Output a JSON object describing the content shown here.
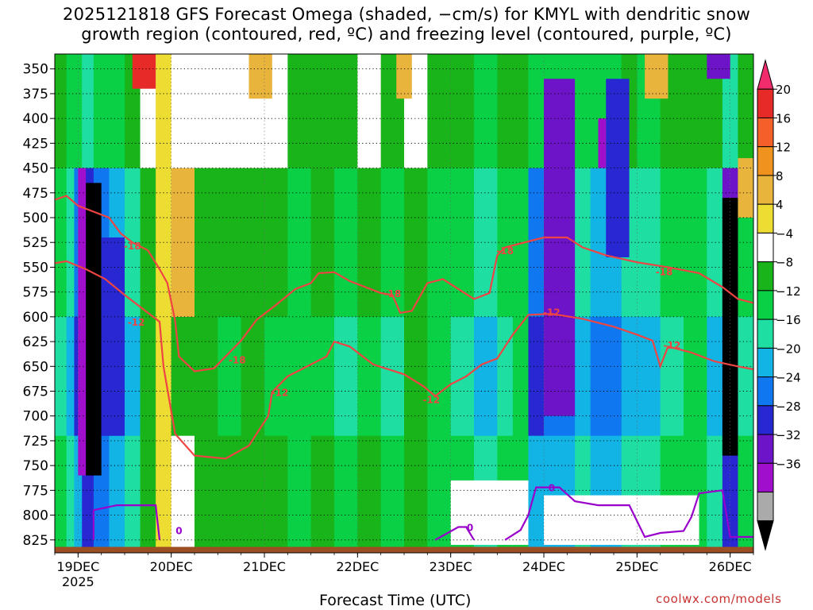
{
  "title": {
    "line1": "2025121818 GFS Forecast Omega (shaded, −cm/s) for KMYL with dendritic snow",
    "line2": "growth region (contoured, red, ºC) and freezing level (contoured, purple, ºC)"
  },
  "credit": "coolwx.com/models",
  "chart_data": {
    "type": "heatmap",
    "xlabel": "Forecast Time (UTC)",
    "ylabel": "",
    "y_axis": {
      "ticks": [
        350,
        375,
        400,
        425,
        450,
        475,
        500,
        525,
        550,
        575,
        600,
        625,
        650,
        675,
        700,
        725,
        750,
        775,
        800,
        825
      ],
      "range": [
        335,
        838
      ],
      "inverted": true,
      "grid": "dotted"
    },
    "x_axis": {
      "ticks": [
        {
          "label": "19DEC",
          "sublabel": "2025",
          "hours": 6
        },
        {
          "label": "20DEC",
          "hours": 30
        },
        {
          "label": "21DEC",
          "hours": 54
        },
        {
          "label": "22DEC",
          "hours": 78
        },
        {
          "label": "23DEC",
          "hours": 102
        },
        {
          "label": "24DEC",
          "hours": 126
        },
        {
          "label": "25DEC",
          "hours": 150
        },
        {
          "label": "26DEC",
          "hours": 174
        }
      ],
      "range_hours": [
        0,
        180
      ],
      "grid": "dotted"
    },
    "colorbar": {
      "labels": [
        "20",
        "16",
        "12",
        "8",
        "4",
        "−4",
        "−8",
        "−12",
        "−16",
        "−20",
        "−24",
        "−28",
        "−32",
        "−36"
      ],
      "bins": [
        {
          "color": "#f02c6c"
        },
        {
          "color": "#e62a28"
        },
        {
          "color": "#f55f2a"
        },
        {
          "color": "#f0921e"
        },
        {
          "color": "#e8b43c"
        },
        {
          "color": "#eddc32"
        },
        {
          "color": "#ffffff"
        },
        {
          "color": "#19b419"
        },
        {
          "color": "#0ad046"
        },
        {
          "color": "#1fdea2"
        },
        {
          "color": "#12b4e6"
        },
        {
          "color": "#0f78f0"
        },
        {
          "color": "#2828d2"
        },
        {
          "color": "#6e14c8"
        },
        {
          "color": "#a00fcc"
        },
        {
          "color": "#aaaaaa"
        },
        {
          "color": "#000000"
        }
      ]
    },
    "omega_bands": [
      {
        "x0": 0,
        "x1": 3,
        "v": -14
      },
      {
        "x0": 3,
        "x1": 5,
        "v": -18
      },
      {
        "x0": 5,
        "x1": 7,
        "v": -24
      },
      {
        "x0": 7,
        "x1": 10,
        "v": -30
      },
      {
        "x0": 10,
        "x1": 14,
        "v": -26
      },
      {
        "x0": 14,
        "x1": 18,
        "v": -22
      },
      {
        "x0": 18,
        "x1": 22,
        "v": -16
      },
      {
        "x0": 22,
        "x1": 26,
        "v": -6
      },
      {
        "x0": 26,
        "x1": 30,
        "v": 2
      },
      {
        "x0": 30,
        "x1": 36,
        "v": -4
      },
      {
        "x0": 36,
        "x1": 42,
        "v": -6
      },
      {
        "x0": 42,
        "x1": 48,
        "v": -8
      },
      {
        "x0": 48,
        "x1": 54,
        "v": -5
      },
      {
        "x0": 54,
        "x1": 60,
        "v": -8
      },
      {
        "x0": 60,
        "x1": 66,
        "v": -10
      },
      {
        "x0": 66,
        "x1": 72,
        "v": -9
      },
      {
        "x0": 72,
        "x1": 78,
        "v": -12
      },
      {
        "x0": 78,
        "x1": 84,
        "v": -8
      },
      {
        "x0": 84,
        "x1": 90,
        "v": -14
      },
      {
        "x0": 90,
        "x1": 96,
        "v": -6
      },
      {
        "x0": 96,
        "x1": 102,
        "v": -10
      },
      {
        "x0": 102,
        "x1": 108,
        "v": -14
      },
      {
        "x0": 108,
        "x1": 114,
        "v": -18
      },
      {
        "x0": 114,
        "x1": 118,
        "v": -12
      },
      {
        "x0": 118,
        "x1": 122,
        "v": -10
      },
      {
        "x0": 122,
        "x1": 126,
        "v": -24
      },
      {
        "x0": 126,
        "x1": 130,
        "v": -20
      },
      {
        "x0": 130,
        "x1": 134,
        "v": -22
      },
      {
        "x0": 134,
        "x1": 138,
        "v": -18
      },
      {
        "x0": 138,
        "x1": 142,
        "v": -22
      },
      {
        "x0": 142,
        "x1": 146,
        "v": -20
      },
      {
        "x0": 146,
        "x1": 150,
        "v": -16
      },
      {
        "x0": 150,
        "x1": 156,
        "v": -18
      },
      {
        "x0": 156,
        "x1": 162,
        "v": -14
      },
      {
        "x0": 162,
        "x1": 168,
        "v": -10
      },
      {
        "x0": 168,
        "x1": 172,
        "v": -16
      },
      {
        "x0": 172,
        "x1": 176,
        "v": -34
      },
      {
        "x0": 176,
        "x1": 180,
        "v": -12
      }
    ],
    "omega_cells": [
      {
        "x0": 8,
        "x1": 12,
        "p0": 465,
        "p1": 760,
        "v": -40
      },
      {
        "x0": 6,
        "x1": 8,
        "p0": 450,
        "p1": 760,
        "v": -34
      },
      {
        "x0": 12,
        "x1": 18,
        "p0": 520,
        "p1": 720,
        "v": -26
      },
      {
        "x0": 20,
        "x1": 26,
        "p0": 335,
        "p1": 370,
        "v": 18
      },
      {
        "x0": 30,
        "x1": 36,
        "p0": 450,
        "p1": 600,
        "v": 6
      },
      {
        "x0": 50,
        "x1": 56,
        "p0": 335,
        "p1": 380,
        "v": 6
      },
      {
        "x0": 88,
        "x1": 92,
        "p0": 335,
        "p1": 380,
        "v": 6
      },
      {
        "x0": 126,
        "x1": 134,
        "p0": 360,
        "p1": 700,
        "v": -30
      },
      {
        "x0": 142,
        "x1": 148,
        "p0": 360,
        "p1": 540,
        "v": -26
      },
      {
        "x0": 172,
        "x1": 176,
        "p0": 480,
        "p1": 740,
        "v": -40
      },
      {
        "x0": 168,
        "x1": 174,
        "p0": 335,
        "p1": 360,
        "v": -28
      },
      {
        "x0": 152,
        "x1": 158,
        "p0": 335,
        "p1": 380,
        "v": 6
      },
      {
        "x0": 176,
        "x1": 180,
        "p0": 440,
        "p1": 500,
        "v": 6
      },
      {
        "x0": 140,
        "x1": 142,
        "p0": 400,
        "p1": 450,
        "v": -34
      }
    ],
    "lowlevel_clear": [
      {
        "x0": 102,
        "x1": 122,
        "p0": 765,
        "p1": 830
      },
      {
        "x0": 126,
        "x1": 166,
        "p0": 780,
        "p1": 830
      }
    ],
    "dgz_contours": [
      {
        "value": -18,
        "labels": [
          {
            "text": "-18",
            "t": 20,
            "p": 528
          },
          {
            "t": 47,
            "p": 643,
            "text": "-18"
          },
          {
            "t": 87,
            "p": 576,
            "text": "-18"
          },
          {
            "t": 116,
            "p": 533,
            "text": "-18"
          },
          {
            "t": 157,
            "p": 554,
            "text": "-18"
          }
        ],
        "points": [
          [
            0,
            482
          ],
          [
            3,
            478
          ],
          [
            6,
            488
          ],
          [
            10,
            494
          ],
          [
            14,
            500
          ],
          [
            17,
            516
          ],
          [
            20,
            525
          ],
          [
            24,
            533
          ],
          [
            27,
            552
          ],
          [
            29,
            566
          ],
          [
            31,
            604
          ],
          [
            32,
            640
          ],
          [
            36,
            655
          ],
          [
            41,
            652
          ],
          [
            44,
            640
          ],
          [
            48,
            624
          ],
          [
            52,
            603
          ],
          [
            57,
            588
          ],
          [
            62,
            572
          ],
          [
            66,
            566
          ],
          [
            68,
            556
          ],
          [
            72,
            555
          ],
          [
            76,
            564
          ],
          [
            80,
            570
          ],
          [
            84,
            576
          ],
          [
            87,
            578
          ],
          [
            89,
            596
          ],
          [
            92,
            594
          ],
          [
            96,
            566
          ],
          [
            100,
            562
          ],
          [
            104,
            572
          ],
          [
            108,
            582
          ],
          [
            112,
            576
          ],
          [
            114,
            538
          ],
          [
            116,
            530
          ],
          [
            120,
            526
          ],
          [
            126,
            520
          ],
          [
            132,
            520
          ],
          [
            136,
            530
          ],
          [
            142,
            538
          ],
          [
            150,
            545
          ],
          [
            158,
            550
          ],
          [
            166,
            556
          ],
          [
            172,
            570
          ],
          [
            176,
            582
          ],
          [
            180,
            586
          ]
        ]
      },
      {
        "value": -12,
        "labels": [
          {
            "text": "-12",
            "t": 21,
            "p": 605
          },
          {
            "t": 58,
            "p": 676,
            "text": "-12"
          },
          {
            "t": 97,
            "p": 683,
            "text": "-12"
          },
          {
            "t": 128,
            "p": 595,
            "text": "-12"
          },
          {
            "t": 159,
            "p": 628,
            "text": "-12"
          }
        ],
        "points": [
          [
            0,
            546
          ],
          [
            3,
            544
          ],
          [
            8,
            552
          ],
          [
            13,
            562
          ],
          [
            18,
            578
          ],
          [
            22,
            590
          ],
          [
            27,
            605
          ],
          [
            28,
            650
          ],
          [
            31,
            718
          ],
          [
            36,
            740
          ],
          [
            44,
            743
          ],
          [
            50,
            730
          ],
          [
            55,
            700
          ],
          [
            56,
            676
          ],
          [
            60,
            660
          ],
          [
            66,
            648
          ],
          [
            70,
            640
          ],
          [
            72,
            625
          ],
          [
            76,
            630
          ],
          [
            82,
            648
          ],
          [
            90,
            658
          ],
          [
            95,
            670
          ],
          [
            98,
            680
          ],
          [
            102,
            668
          ],
          [
            106,
            660
          ],
          [
            110,
            648
          ],
          [
            114,
            642
          ],
          [
            118,
            618
          ],
          [
            122,
            598
          ],
          [
            128,
            597
          ],
          [
            136,
            602
          ],
          [
            144,
            610
          ],
          [
            150,
            618
          ],
          [
            154,
            624
          ],
          [
            156,
            650
          ],
          [
            158,
            630
          ],
          [
            164,
            636
          ],
          [
            170,
            645
          ],
          [
            176,
            650
          ],
          [
            180,
            653
          ]
        ]
      }
    ],
    "freezing_level": [
      {
        "points": [
          [
            10,
            825
          ],
          [
            10,
            795
          ],
          [
            16,
            790
          ],
          [
            22,
            790
          ],
          [
            26,
            790
          ],
          [
            27,
            825
          ]
        ],
        "label": {
          "text": "0",
          "t": 32,
          "p": 815
        }
      },
      {
        "points": [
          [
            98,
            825
          ],
          [
            104,
            812
          ],
          [
            106,
            812
          ],
          [
            108,
            825
          ]
        ],
        "label": {
          "text": "0",
          "t": 107,
          "p": 812
        }
      },
      {
        "points": [
          [
            116,
            825
          ],
          [
            120,
            815
          ],
          [
            122,
            800
          ],
          [
            124,
            772
          ],
          [
            130,
            772
          ],
          [
            134,
            786
          ],
          [
            140,
            790
          ],
          [
            148,
            790
          ],
          [
            152,
            822
          ],
          [
            156,
            818
          ],
          [
            162,
            816
          ],
          [
            164,
            802
          ],
          [
            166,
            778
          ],
          [
            172,
            775
          ],
          [
            174,
            822
          ],
          [
            180,
            822
          ]
        ],
        "label": {
          "text": "0",
          "t": 128,
          "p": 772
        }
      }
    ],
    "terrain_pressure": 832
  }
}
